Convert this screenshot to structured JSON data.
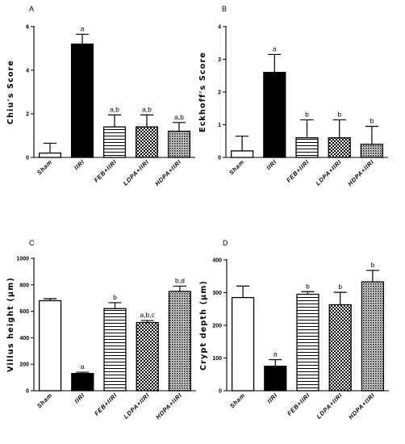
{
  "chart_data": [
    {
      "type": "bar",
      "panel": "A",
      "ylabel": "Chiu's Score",
      "ylim": [
        0,
        6
      ],
      "yticks": [
        0,
        2,
        4,
        6
      ],
      "categories": [
        "Sham",
        "IIRI",
        "FEB+IIRI",
        "LDPA+IIRI",
        "HDPA+IIRI"
      ],
      "values": [
        0.2,
        5.2,
        1.4,
        1.4,
        1.2
      ],
      "errors": [
        0.45,
        0.45,
        0.55,
        0.55,
        0.4
      ],
      "annotations": [
        "",
        "a",
        "a,b",
        "a,b",
        "a,b"
      ],
      "patterns": [
        "white",
        "black",
        "hlines",
        "checker",
        "dots"
      ]
    },
    {
      "type": "bar",
      "panel": "B",
      "ylabel": "Eckhoff's Score",
      "ylim": [
        0,
        4
      ],
      "yticks": [
        0,
        1,
        2,
        3,
        4
      ],
      "categories": [
        "Sham",
        "IIRI",
        "FEB+IIRI",
        "LDPA+IIRI",
        "HDPA+IIRI"
      ],
      "values": [
        0.2,
        2.6,
        0.6,
        0.6,
        0.4
      ],
      "errors": [
        0.45,
        0.55,
        0.55,
        0.55,
        0.55
      ],
      "annotations": [
        "",
        "a",
        "b",
        "b",
        "b"
      ],
      "patterns": [
        "white",
        "black",
        "hlines",
        "checker",
        "dots"
      ]
    },
    {
      "type": "bar",
      "panel": "C",
      "ylabel": "Villus height (μm)",
      "ylim": [
        0,
        1000
      ],
      "yticks": [
        0,
        200,
        400,
        600,
        800,
        1000
      ],
      "categories": [
        "Sham",
        "IIRI",
        "FEB+IIRI",
        "LDPA+IIRI",
        "HDPA+IIRI"
      ],
      "values": [
        680,
        130,
        620,
        515,
        750
      ],
      "errors": [
        15,
        10,
        45,
        15,
        40
      ],
      "annotations": [
        "",
        "a",
        "b",
        "a,b,c",
        "b,d"
      ],
      "patterns": [
        "white",
        "black",
        "hlines",
        "checker",
        "dots"
      ]
    },
    {
      "type": "bar",
      "panel": "D",
      "ylabel": "Crypt depth (μm)",
      "ylim": [
        0,
        400
      ],
      "yticks": [
        0,
        100,
        200,
        300,
        400
      ],
      "categories": [
        "Sham",
        "IIRI",
        "FEB+IIRI",
        "LDPA+IIRI",
        "HDPA+IIRI"
      ],
      "values": [
        285,
        75,
        295,
        263,
        333
      ],
      "errors": [
        35,
        20,
        8,
        38,
        35
      ],
      "annotations": [
        "",
        "a",
        "b",
        "b",
        "b"
      ],
      "patterns": [
        "white",
        "black",
        "hlines",
        "checker",
        "dots"
      ]
    }
  ]
}
